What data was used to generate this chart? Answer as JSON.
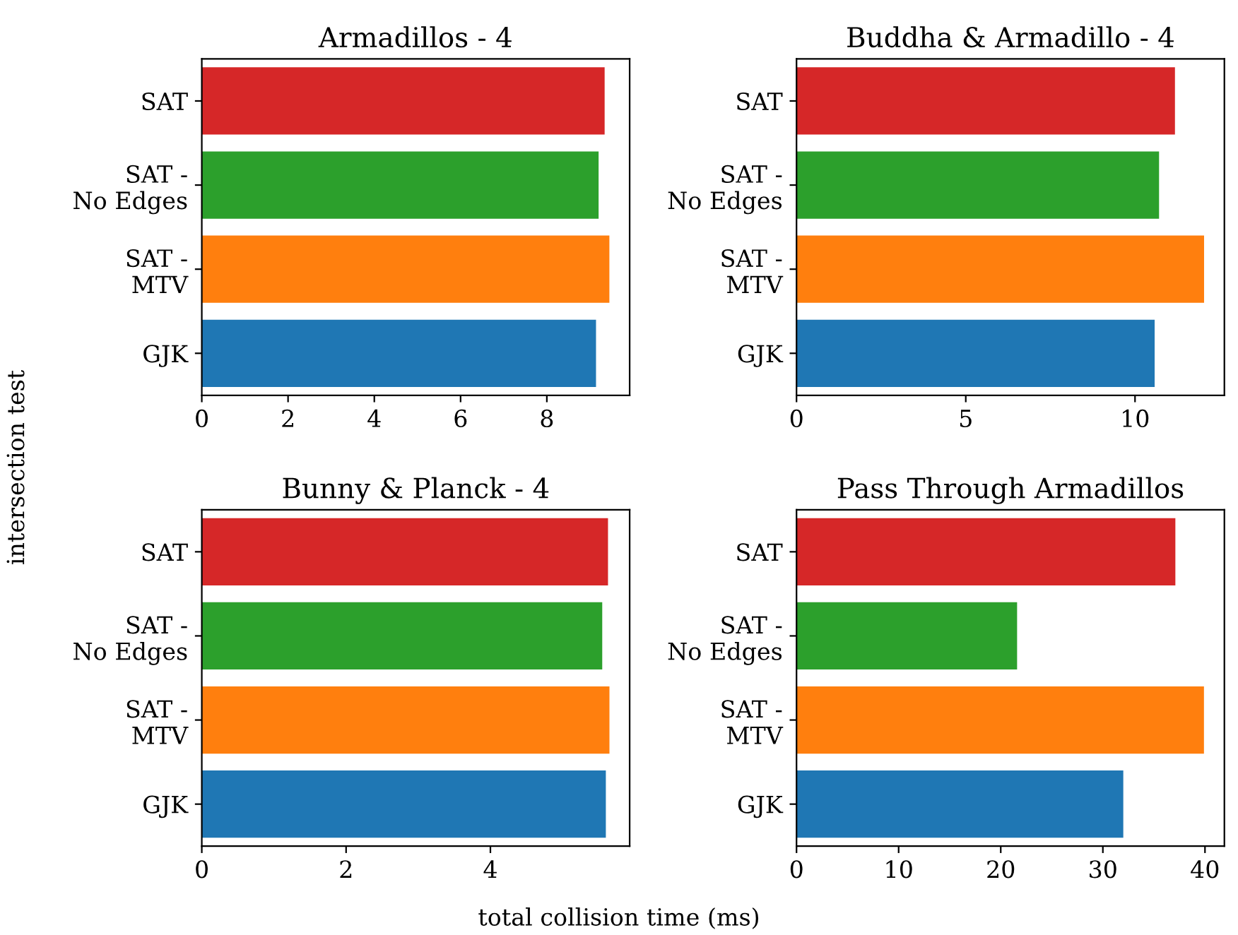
{
  "chart_data": [
    {
      "type": "bar",
      "orientation": "horizontal",
      "title": "Armadillos - 4",
      "xlabel": "total collision time (ms)",
      "ylabel": "intersection test",
      "categories": [
        "SAT",
        "SAT -\nNo Edges",
        "SAT -\nMTV",
        "GJK"
      ],
      "values": [
        9.34,
        9.2,
        9.45,
        9.14
      ],
      "colors": [
        "#d62728",
        "#2ca02c",
        "#ff7f0e",
        "#1f77b4"
      ],
      "xlim": [
        0,
        9.92
      ],
      "xticks": [
        0,
        2,
        4,
        6,
        8
      ]
    },
    {
      "type": "bar",
      "orientation": "horizontal",
      "title": "Buddha & Armadillo - 4",
      "categories": [
        "SAT",
        "SAT -\nNo Edges",
        "SAT -\nMTV",
        "GJK"
      ],
      "values": [
        11.18,
        10.71,
        12.04,
        10.58
      ],
      "colors": [
        "#d62728",
        "#2ca02c",
        "#ff7f0e",
        "#1f77b4"
      ],
      "xlim": [
        0,
        12.64
      ],
      "xticks": [
        0,
        5,
        10
      ]
    },
    {
      "type": "bar",
      "orientation": "horizontal",
      "title": "Bunny & Planck - 4",
      "categories": [
        "SAT",
        "SAT -\nNo Edges",
        "SAT -\nMTV",
        "GJK"
      ],
      "values": [
        5.63,
        5.55,
        5.65,
        5.6
      ],
      "colors": [
        "#d62728",
        "#2ca02c",
        "#ff7f0e",
        "#1f77b4"
      ],
      "xlim": [
        0,
        5.93
      ],
      "xticks": [
        0,
        2,
        4
      ]
    },
    {
      "type": "bar",
      "orientation": "horizontal",
      "title": "Pass Through Armadillos",
      "categories": [
        "SAT",
        "SAT -\nNo Edges",
        "SAT -\nMTV",
        "GJK"
      ],
      "values": [
        37.1,
        21.6,
        39.9,
        32.0
      ],
      "colors": [
        "#d62728",
        "#2ca02c",
        "#ff7f0e",
        "#1f77b4"
      ],
      "xlim": [
        0,
        41.9
      ],
      "xticks": [
        0,
        10,
        20,
        30,
        40
      ]
    }
  ]
}
